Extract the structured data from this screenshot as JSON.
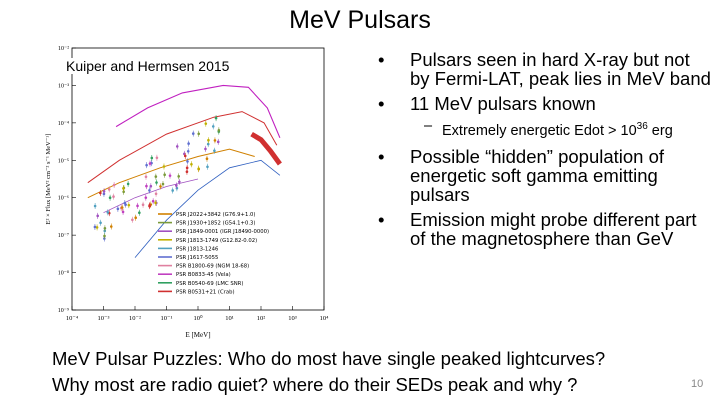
{
  "slide": {
    "title": "MeV Pulsars",
    "figure_credit": "Kuiper and Hermsen 2015",
    "bullets": [
      "Pulsars seen in hard X-ray but not by Fermi-LAT, peak lies in MeV band",
      "11 MeV pulsars known"
    ],
    "sub_bullet": {
      "text": "Extremely energetic Edot > 10",
      "exponent": "36",
      "unit": " erg"
    },
    "bullets2": [
      "Possible “hidden” population of energetic soft gamma emitting pulsars",
      "Emission might probe different part of the magnetosphere than GeV"
    ],
    "bottom_lines": [
      "MeV Pulsar Puzzles: Who do most have single peaked lightcurves?",
      "Why most are radio quiet? where do their SEDs peak and why ?"
    ],
    "page_number": "10"
  },
  "chart_data": {
    "type": "scatter",
    "xlabel": "E [MeV]",
    "ylabel": "E² × Flux [MeV² cm⁻² s⁻¹ MeV⁻¹]",
    "x_ticks": [
      "10⁻⁴",
      "10⁻³",
      "10⁻²",
      "10⁻¹",
      "10⁰",
      "10¹",
      "10²",
      "10³",
      "10⁴"
    ],
    "y_ticks": [
      "10⁻²",
      "10⁻³",
      "10⁻⁴",
      "10⁻⁵",
      "10⁻⁶",
      "10⁻⁷",
      "10⁻⁸",
      "10⁻⁹"
    ],
    "xlim_log10": [
      -4,
      4
    ],
    "ylim_log10": [
      -9,
      -2
    ],
    "legend_position": "bottom-right",
    "series": [
      {
        "name": "PSR J2022+3842 (G76.9+1.0)",
        "color": "#d08000"
      },
      {
        "name": "PSR J1930+1852 (G54.1+0.3)",
        "color": "#7a9a3a"
      },
      {
        "name": "PSR J1849-0001 (IGR J18490-0000)",
        "color": "#a050c0"
      },
      {
        "name": "PSR J1813-1749 (G12.82-0.02)",
        "color": "#c0b000"
      },
      {
        "name": "PSR J1813-1246",
        "color": "#50a0c0"
      },
      {
        "name": "PSR J1617-5055",
        "color": "#6070d0"
      },
      {
        "name": "PSR B1800-69 (NGM 18-68)",
        "color": "#e080a0"
      },
      {
        "name": "PSR B0833-45 (Vela)",
        "color": "#c040c0"
      },
      {
        "name": "PSR B0540-69 (LMC SNR)",
        "color": "#30a060"
      },
      {
        "name": "PSR B0531+21 (Crab)",
        "color": "#d03030"
      }
    ]
  }
}
